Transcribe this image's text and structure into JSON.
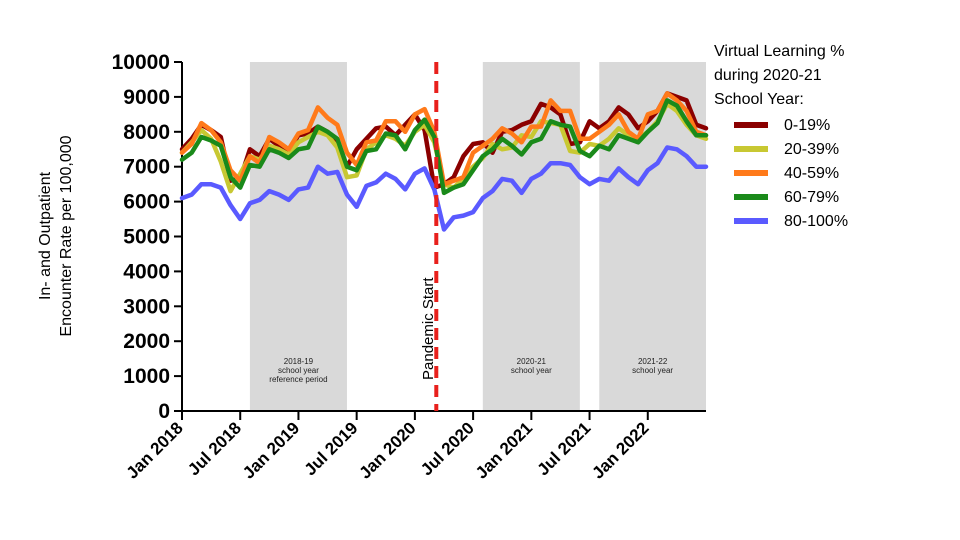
{
  "chart_data": {
    "type": "line",
    "title": "",
    "xlabel": "",
    "ylabel": [
      "In- and Outpatient",
      "Encounter Rate per 100,000"
    ],
    "ylim": [
      0,
      10000
    ],
    "yticks": [
      "0",
      "1000",
      "2000",
      "3000",
      "4000",
      "5000",
      "6000",
      "7000",
      "8000",
      "9000",
      "10000"
    ],
    "x_tick_labels": [
      "Jan 2018",
      "Jul 2018",
      "Jan 2019",
      "Jul 2019",
      "Jan 2020",
      "Jul 2020",
      "Jan 2021",
      "Jul 2021",
      "Jan 2022"
    ],
    "x_start": "2018-01",
    "x_end": "2022-07",
    "x": [
      "2018-01",
      "2018-02",
      "2018-03",
      "2018-04",
      "2018-05",
      "2018-06",
      "2018-07",
      "2018-08",
      "2018-09",
      "2018-10",
      "2018-11",
      "2018-12",
      "2019-01",
      "2019-02",
      "2019-03",
      "2019-04",
      "2019-05",
      "2019-06",
      "2019-07",
      "2019-08",
      "2019-09",
      "2019-10",
      "2019-11",
      "2019-12",
      "2020-01",
      "2020-02",
      "2020-03",
      "2020-04",
      "2020-05",
      "2020-06",
      "2020-07",
      "2020-08",
      "2020-09",
      "2020-10",
      "2020-11",
      "2020-12",
      "2021-01",
      "2021-02",
      "2021-03",
      "2021-04",
      "2021-05",
      "2021-06",
      "2021-07",
      "2021-08",
      "2021-09",
      "2021-10",
      "2021-11",
      "2021-12",
      "2022-01",
      "2022-02",
      "2022-03",
      "2022-04",
      "2022-05",
      "2022-06",
      "2022-07"
    ],
    "legend": {
      "title": "Virtual Learning %\nduring 2020-21\nSchool Year:",
      "position": "right"
    },
    "shaded_periods": [
      {
        "start": "2018-08",
        "end": "2019-06",
        "label": "2018-19\nschool year\nreference period"
      },
      {
        "start": "2020-08",
        "end": "2021-06",
        "label": "2020-21\nschool year"
      },
      {
        "start": "2021-08",
        "end": "2022-07",
        "label": "2021-22\nschool year"
      }
    ],
    "annotations": [
      {
        "text": "Pandemic Start",
        "x": "2020-03",
        "style": "dashed-vertical-line",
        "color": "#e8201c"
      }
    ],
    "series": [
      {
        "name": "0-19%",
        "color": "#8b0000",
        "values": [
          7500,
          7800,
          8200,
          8050,
          7850,
          6600,
          6650,
          7500,
          7300,
          7800,
          7600,
          7450,
          7900,
          7950,
          8150,
          8000,
          7700,
          7000,
          7500,
          7800,
          8100,
          8150,
          7900,
          8200,
          8500,
          8050,
          6400,
          6500,
          6700,
          7300,
          7650,
          7700,
          7400,
          8000,
          8050,
          8200,
          8300,
          8800,
          8700,
          8500,
          7650,
          7700,
          8300,
          8100,
          8300,
          8700,
          8500,
          8100,
          8300,
          8600,
          9100,
          9000,
          8900,
          8200,
          8100
        ]
      },
      {
        "name": "20-39%",
        "color": "#c8c832",
        "values": [
          7400,
          7700,
          8050,
          7800,
          7150,
          6300,
          6800,
          7300,
          7200,
          7600,
          7500,
          7350,
          7700,
          7850,
          8000,
          7900,
          7550,
          6700,
          6750,
          7500,
          7700,
          7900,
          7800,
          7600,
          8000,
          8200,
          7700,
          6500,
          6400,
          6650,
          7000,
          7250,
          7650,
          7500,
          7550,
          7900,
          7850,
          8300,
          8250,
          8200,
          7450,
          7400,
          7650,
          7600,
          7800,
          8100,
          7900,
          7800,
          8000,
          8300,
          8800,
          8600,
          8200,
          7900,
          7800
        ]
      },
      {
        "name": "40-59%",
        "color": "#ff7a1a",
        "values": [
          7400,
          7650,
          8250,
          8050,
          7700,
          6900,
          6600,
          7300,
          7100,
          7850,
          7700,
          7500,
          7950,
          8050,
          8700,
          8400,
          8200,
          7400,
          7050,
          7700,
          7750,
          8300,
          8300,
          8000,
          8500,
          8650,
          8000,
          6500,
          6600,
          6700,
          7400,
          7600,
          7800,
          8100,
          7950,
          7700,
          8150,
          8150,
          8900,
          8600,
          8600,
          7800,
          7800,
          8000,
          8200,
          8500,
          8000,
          7800,
          8500,
          8600,
          9100,
          8900,
          8600,
          8000,
          7900
        ]
      },
      {
        "name": "60-79%",
        "color": "#1a8a1a",
        "values": [
          7200,
          7400,
          7850,
          7750,
          7600,
          6700,
          6400,
          7050,
          7000,
          7500,
          7400,
          7250,
          7500,
          7550,
          8150,
          8000,
          7800,
          7000,
          6900,
          7450,
          7500,
          7950,
          7900,
          7500,
          8050,
          8350,
          7850,
          6250,
          6400,
          6500,
          6900,
          7300,
          7500,
          7800,
          7600,
          7350,
          7700,
          7800,
          8300,
          8200,
          8150,
          7450,
          7300,
          7600,
          7500,
          7900,
          7800,
          7700,
          8000,
          8250,
          8900,
          8750,
          8300,
          7900,
          7900
        ]
      },
      {
        "name": "80-100%",
        "color": "#5a5aff",
        "values": [
          6100,
          6200,
          6500,
          6500,
          6400,
          5900,
          5500,
          5950,
          6050,
          6300,
          6200,
          6050,
          6350,
          6400,
          7000,
          6800,
          6850,
          6200,
          5850,
          6450,
          6550,
          6800,
          6650,
          6350,
          6800,
          6950,
          6350,
          5200,
          5550,
          5600,
          5700,
          6100,
          6300,
          6650,
          6600,
          6250,
          6650,
          6800,
          7100,
          7100,
          7050,
          6700,
          6500,
          6650,
          6600,
          6950,
          6700,
          6500,
          6900,
          7100,
          7550,
          7500,
          7300,
          7000,
          7000
        ]
      }
    ]
  }
}
